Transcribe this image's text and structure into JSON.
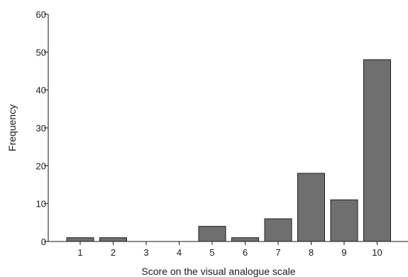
{
  "chart_data": {
    "type": "bar",
    "categories": [
      "1",
      "2",
      "3",
      "4",
      "5",
      "6",
      "7",
      "8",
      "9",
      "10"
    ],
    "values": [
      1,
      1,
      0,
      0,
      4,
      1,
      6,
      18,
      11,
      48
    ],
    "title": "",
    "xlabel": "Score on the visual analogue scale",
    "ylabel": "Frequency",
    "ylim": [
      0,
      60
    ],
    "yticks": [
      0,
      10,
      20,
      30,
      40,
      50,
      60
    ],
    "grid": false,
    "bar_color": "#6f6f6f"
  }
}
